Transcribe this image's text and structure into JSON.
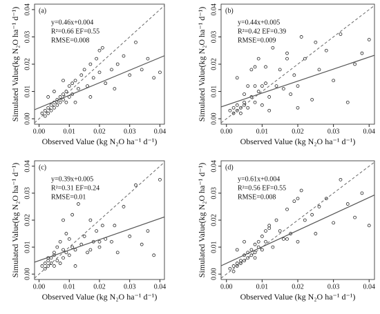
{
  "chart_data": [
    {
      "type": "scatter",
      "panel_label": "(a)",
      "annotations": [
        "y=0.46x+0.004",
        "R²=0.66  EF=0.55",
        "RMSE=0.008"
      ],
      "fit": {
        "slope": 0.46,
        "intercept": 0.004
      },
      "xlabel": "Observed Value (kg N₂O  ha⁻¹ d⁻¹)",
      "ylabel": "Simulated Value(kg N₂O  ha⁻¹ d⁻¹)",
      "xlim": [
        -0.0015,
        0.0415
      ],
      "ylim": [
        -0.002,
        0.042
      ],
      "xticks": [
        {
          "value": 0,
          "label": "0.00"
        },
        {
          "value": 0.01,
          "label": "0.01"
        },
        {
          "value": 0.02,
          "label": "0.02"
        },
        {
          "value": 0.03,
          "label": "0.03"
        },
        {
          "value": 0.04,
          "label": "0.04"
        }
      ],
      "yticks": [
        {
          "value": 0,
          "label": "0.00"
        },
        {
          "value": 0.01,
          "label": "0.01"
        },
        {
          "value": 0.02,
          "label": "0.02"
        },
        {
          "value": 0.03,
          "label": "0.03"
        },
        {
          "value": 0.04,
          "label": "0.04"
        }
      ],
      "color": "#222222",
      "x": [
        0.001,
        0.002,
        0.002,
        0.003,
        0.003,
        0.004,
        0.004,
        0.005,
        0.005,
        0.006,
        0.006,
        0.007,
        0.007,
        0.008,
        0.008,
        0.009,
        0.009,
        0.01,
        0.01,
        0.011,
        0.011,
        0.012,
        0.013,
        0.014,
        0.015,
        0.016,
        0.017,
        0.018,
        0.019,
        0.02,
        0.021,
        0.022,
        0.024,
        0.026,
        0.028,
        0.03,
        0.032,
        0.034,
        0.036,
        0.038,
        0.04,
        0.003,
        0.005,
        0.008,
        0.012,
        0.017,
        0.02,
        0.025
      ],
      "values": [
        0.002,
        0.003,
        0.001,
        0.004,
        0.002,
        0.005,
        0.003,
        0.006,
        0.004,
        0.007,
        0.005,
        0.008,
        0.006,
        0.009,
        0.007,
        0.01,
        0.006,
        0.012,
        0.008,
        0.013,
        0.009,
        0.014,
        0.011,
        0.016,
        0.018,
        0.012,
        0.02,
        0.015,
        0.022,
        0.017,
        0.026,
        0.013,
        0.018,
        0.02,
        0.023,
        0.016,
        0.028,
        0.018,
        0.022,
        0.015,
        0.017,
        0.008,
        0.01,
        0.014,
        0.006,
        0.008,
        0.025,
        0.011
      ]
    },
    {
      "type": "scatter",
      "panel_label": "(b)",
      "annotations": [
        "y=0.44x+0.005",
        "R²=0.42   EF=0.39",
        "RMSE=0.009"
      ],
      "fit": {
        "slope": 0.44,
        "intercept": 0.005
      },
      "xlabel": "Observed Value (kg N₂O  ha⁻¹ d⁻¹)",
      "ylabel": "Simulated Value(kg N₂O  ha⁻¹ d⁻¹)",
      "xlim": [
        -0.0015,
        0.0415
      ],
      "ylim": [
        -0.002,
        0.042
      ],
      "xticks": [
        {
          "value": 0,
          "label": "0.00"
        },
        {
          "value": 0.01,
          "label": "0.01"
        },
        {
          "value": 0.02,
          "label": "0.02"
        },
        {
          "value": 0.03,
          "label": "0.03"
        },
        {
          "value": 0.04,
          "label": "0.04"
        }
      ],
      "yticks": [
        {
          "value": 0,
          "label": "0.00"
        },
        {
          "value": 0.01,
          "label": "0.01"
        },
        {
          "value": 0.02,
          "label": "0.02"
        },
        {
          "value": 0.03,
          "label": "0.03"
        },
        {
          "value": 0.04,
          "label": "0.04"
        }
      ],
      "color": "#222222",
      "x": [
        0.001,
        0.002,
        0.002,
        0.003,
        0.003,
        0.004,
        0.004,
        0.005,
        0.005,
        0.006,
        0.006,
        0.007,
        0.007,
        0.008,
        0.008,
        0.009,
        0.009,
        0.01,
        0.01,
        0.011,
        0.011,
        0.012,
        0.013,
        0.014,
        0.015,
        0.016,
        0.017,
        0.018,
        0.019,
        0.02,
        0.021,
        0.022,
        0.024,
        0.026,
        0.028,
        0.03,
        0.032,
        0.034,
        0.036,
        0.038,
        0.04,
        0.003,
        0.005,
        0.008,
        0.012,
        0.017,
        0.02,
        0.025
      ],
      "values": [
        0.003,
        0.004,
        0.002,
        0.005,
        0.003,
        0.004,
        0.002,
        0.006,
        0.005,
        0.004,
        0.012,
        0.008,
        0.018,
        0.006,
        0.012,
        0.01,
        0.022,
        0.012,
        0.005,
        0.019,
        0.013,
        0.008,
        0.026,
        0.012,
        0.018,
        0.011,
        0.024,
        0.009,
        0.016,
        0.012,
        0.03,
        0.022,
        0.007,
        0.018,
        0.025,
        0.014,
        0.031,
        0.006,
        0.02,
        0.024,
        0.029,
        0.015,
        0.009,
        0.019,
        0.003,
        0.022,
        0.004,
        0.028
      ]
    },
    {
      "type": "scatter",
      "panel_label": "(c)",
      "annotations": [
        "y=0.39x+0.005",
        "R²=0.31  EF=0.24",
        "RMSE=0.01"
      ],
      "fit": {
        "slope": 0.39,
        "intercept": 0.005
      },
      "xlabel": "Observed Value (kg N₂O  ha⁻¹ d⁻¹)",
      "ylabel": "Simulated Value(kg N₂O  ha⁻¹ d⁻¹)",
      "xlim": [
        -0.0015,
        0.0415
      ],
      "ylim": [
        -0.002,
        0.042
      ],
      "xticks": [
        {
          "value": 0,
          "label": "0.00"
        },
        {
          "value": 0.01,
          "label": "0.01"
        },
        {
          "value": 0.02,
          "label": "0.02"
        },
        {
          "value": 0.03,
          "label": "0.03"
        },
        {
          "value": 0.04,
          "label": "0.04"
        }
      ],
      "yticks": [
        {
          "value": 0,
          "label": "0.00"
        },
        {
          "value": 0.01,
          "label": "0.01"
        },
        {
          "value": 0.02,
          "label": "0.02"
        },
        {
          "value": 0.03,
          "label": "0.03"
        },
        {
          "value": 0.04,
          "label": "0.04"
        }
      ],
      "color": "#222222",
      "x": [
        0.001,
        0.002,
        0.002,
        0.003,
        0.003,
        0.004,
        0.004,
        0.005,
        0.005,
        0.006,
        0.006,
        0.007,
        0.007,
        0.008,
        0.008,
        0.009,
        0.009,
        0.01,
        0.01,
        0.011,
        0.011,
        0.012,
        0.013,
        0.014,
        0.015,
        0.016,
        0.017,
        0.018,
        0.019,
        0.02,
        0.021,
        0.022,
        0.024,
        0.026,
        0.028,
        0.03,
        0.032,
        0.034,
        0.036,
        0.038,
        0.04,
        0.003,
        0.005,
        0.008,
        0.012,
        0.017,
        0.02,
        0.025
      ],
      "values": [
        0.003,
        0.002,
        0.004,
        0.003,
        0.005,
        0.004,
        0.006,
        0.003,
        0.007,
        0.005,
        0.01,
        0.004,
        0.012,
        0.006,
        0.009,
        0.008,
        0.015,
        0.007,
        0.013,
        0.01,
        0.022,
        0.009,
        0.026,
        0.011,
        0.014,
        0.008,
        0.02,
        0.012,
        0.016,
        0.01,
        0.018,
        0.013,
        0.012,
        0.008,
        0.025,
        0.014,
        0.033,
        0.011,
        0.016,
        0.007,
        0.035,
        0.006,
        0.008,
        0.02,
        0.003,
        0.009,
        0.012,
        0.018
      ]
    },
    {
      "type": "scatter",
      "panel_label": "(d)",
      "annotations": [
        "y=0.61x+0.004",
        "R²=0.56  EF=0.55",
        "RMSE=0.008"
      ],
      "fit": {
        "slope": 0.61,
        "intercept": 0.004
      },
      "xlabel": "Observed Value (kg N₂O  ha⁻¹ d⁻¹)",
      "ylabel": "Simulated Value(kg N₂O  ha⁻¹ d⁻¹)",
      "xlim": [
        -0.0015,
        0.0415
      ],
      "ylim": [
        -0.002,
        0.042
      ],
      "xticks": [
        {
          "value": 0,
          "label": "0.00"
        },
        {
          "value": 0.01,
          "label": "0.01"
        },
        {
          "value": 0.02,
          "label": "0.02"
        },
        {
          "value": 0.03,
          "label": "0.03"
        },
        {
          "value": 0.04,
          "label": "0.04"
        }
      ],
      "yticks": [
        {
          "value": 0,
          "label": "0.00"
        },
        {
          "value": 0.01,
          "label": "0.01"
        },
        {
          "value": 0.02,
          "label": "0.02"
        },
        {
          "value": 0.03,
          "label": "0.03"
        },
        {
          "value": 0.04,
          "label": "0.04"
        }
      ],
      "color": "#222222",
      "x": [
        0.001,
        0.002,
        0.002,
        0.003,
        0.003,
        0.004,
        0.004,
        0.005,
        0.005,
        0.006,
        0.006,
        0.007,
        0.007,
        0.008,
        0.008,
        0.009,
        0.009,
        0.01,
        0.01,
        0.011,
        0.011,
        0.012,
        0.013,
        0.014,
        0.015,
        0.016,
        0.017,
        0.018,
        0.019,
        0.02,
        0.021,
        0.022,
        0.024,
        0.026,
        0.028,
        0.03,
        0.032,
        0.034,
        0.036,
        0.038,
        0.04,
        0.003,
        0.005,
        0.008,
        0.012,
        0.017,
        0.02,
        0.025
      ],
      "values": [
        0.002,
        0.003,
        0.001,
        0.004,
        0.003,
        0.005,
        0.004,
        0.007,
        0.005,
        0.008,
        0.006,
        0.009,
        0.007,
        0.011,
        0.008,
        0.012,
        0.01,
        0.014,
        0.009,
        0.016,
        0.012,
        0.018,
        0.01,
        0.02,
        0.016,
        0.013,
        0.024,
        0.015,
        0.027,
        0.012,
        0.031,
        0.02,
        0.022,
        0.025,
        0.028,
        0.019,
        0.035,
        0.026,
        0.021,
        0.03,
        0.018,
        0.009,
        0.012,
        0.006,
        0.017,
        0.013,
        0.028,
        0.015
      ]
    }
  ]
}
